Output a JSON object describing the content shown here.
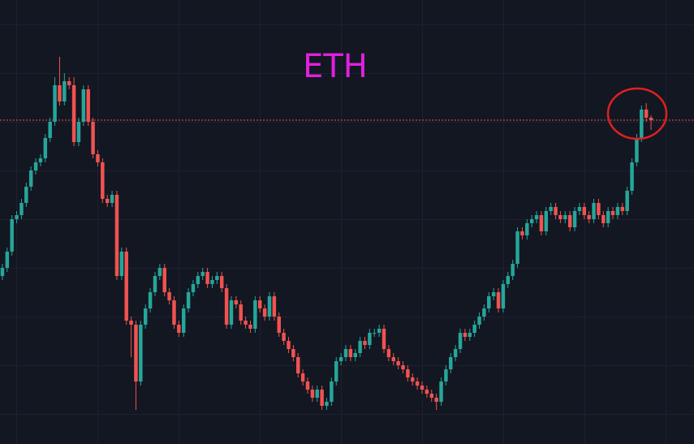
{
  "chart_data": {
    "type": "candlestick",
    "title": "ETH",
    "ylim": [
      0,
      547
    ],
    "up_color": "#26a69a",
    "down_color": "#ef5350",
    "price_line": 399,
    "price_line_color": "#ef5350",
    "open": [
      207,
      217,
      237,
      277,
      282,
      297,
      317,
      337,
      347,
      352,
      377,
      397,
      442,
      422,
      447,
      442,
      372,
      397,
      437,
      397,
      357,
      347,
      302,
      297,
      307,
      207,
      237,
      152,
      147,
      77,
      147,
      167,
      187,
      207,
      217,
      187,
      177,
      147,
      137,
      167,
      187,
      197,
      207,
      212,
      197,
      202,
      207,
      192,
      147,
      177,
      172,
      152,
      147,
      142,
      177,
      167,
      157,
      182,
      157,
      137,
      127,
      117,
      107,
      87,
      77,
      67,
      57,
      67,
      47,
      52,
      77,
      102,
      107,
      117,
      107,
      112,
      127,
      122,
      137,
      137,
      142,
      117,
      107,
      102,
      97,
      92,
      82,
      77,
      72,
      67,
      62,
      57,
      52,
      77,
      92,
      107,
      117,
      137,
      132,
      137,
      147,
      157,
      167,
      182,
      187,
      167,
      197,
      207,
      222,
      262,
      257,
      272,
      277,
      282,
      262,
      287,
      292,
      282,
      277,
      282,
      267,
      287,
      292,
      282,
      277,
      297,
      282,
      272,
      287,
      282,
      292,
      287,
      312,
      347,
      377,
      412,
      402
    ],
    "high": [
      222,
      242,
      282,
      287,
      302,
      322,
      342,
      352,
      357,
      382,
      402,
      452,
      477,
      457,
      452,
      452,
      402,
      442,
      442,
      402,
      362,
      352,
      307,
      312,
      312,
      242,
      242,
      157,
      152,
      152,
      172,
      192,
      212,
      222,
      222,
      192,
      182,
      152,
      172,
      192,
      202,
      212,
      217,
      217,
      207,
      212,
      212,
      197,
      182,
      182,
      177,
      157,
      152,
      182,
      182,
      172,
      187,
      187,
      162,
      142,
      132,
      122,
      112,
      92,
      82,
      72,
      72,
      72,
      57,
      82,
      107,
      112,
      122,
      122,
      117,
      132,
      132,
      142,
      142,
      147,
      147,
      122,
      112,
      107,
      102,
      97,
      87,
      82,
      77,
      72,
      67,
      62,
      82,
      97,
      112,
      122,
      142,
      142,
      142,
      152,
      162,
      172,
      187,
      192,
      192,
      202,
      212,
      227,
      267,
      267,
      277,
      282,
      287,
      287,
      292,
      297,
      297,
      287,
      287,
      287,
      292,
      297,
      297,
      287,
      302,
      302,
      287,
      292,
      292,
      297,
      297,
      317,
      352,
      382,
      417,
      420,
      405
    ],
    "low": [
      202,
      212,
      232,
      272,
      277,
      292,
      312,
      332,
      342,
      347,
      372,
      392,
      417,
      417,
      437,
      367,
      367,
      392,
      392,
      352,
      342,
      297,
      292,
      292,
      202,
      202,
      147,
      107,
      42,
      72,
      142,
      162,
      182,
      202,
      182,
      172,
      142,
      132,
      132,
      162,
      182,
      192,
      202,
      192,
      192,
      197,
      187,
      142,
      142,
      167,
      147,
      142,
      137,
      137,
      162,
      152,
      152,
      152,
      132,
      122,
      112,
      102,
      82,
      72,
      62,
      52,
      52,
      42,
      42,
      47,
      72,
      97,
      102,
      102,
      102,
      107,
      117,
      117,
      132,
      132,
      112,
      102,
      97,
      92,
      87,
      77,
      72,
      67,
      62,
      57,
      52,
      42,
      47,
      72,
      87,
      102,
      112,
      127,
      127,
      132,
      142,
      152,
      162,
      177,
      162,
      162,
      192,
      202,
      217,
      252,
      252,
      267,
      272,
      257,
      257,
      282,
      277,
      272,
      272,
      262,
      262,
      282,
      277,
      272,
      272,
      277,
      267,
      267,
      277,
      277,
      282,
      282,
      307,
      342,
      372,
      397,
      387
    ],
    "close": [
      217,
      237,
      277,
      282,
      297,
      317,
      337,
      347,
      352,
      377,
      397,
      442,
      422,
      447,
      442,
      372,
      397,
      437,
      397,
      357,
      347,
      302,
      297,
      307,
      207,
      237,
      152,
      147,
      77,
      147,
      167,
      187,
      207,
      217,
      187,
      177,
      147,
      137,
      167,
      187,
      197,
      207,
      212,
      197,
      202,
      207,
      192,
      147,
      177,
      172,
      152,
      147,
      142,
      177,
      167,
      157,
      182,
      157,
      137,
      127,
      117,
      107,
      87,
      77,
      67,
      57,
      67,
      47,
      52,
      77,
      102,
      107,
      117,
      107,
      112,
      127,
      122,
      137,
      137,
      142,
      117,
      107,
      102,
      97,
      92,
      82,
      77,
      72,
      67,
      62,
      57,
      52,
      77,
      92,
      107,
      117,
      137,
      132,
      137,
      147,
      157,
      167,
      182,
      187,
      167,
      197,
      207,
      222,
      262,
      257,
      272,
      277,
      282,
      262,
      287,
      292,
      282,
      277,
      282,
      267,
      287,
      292,
      282,
      277,
      297,
      282,
      272,
      287,
      282,
      292,
      287,
      312,
      347,
      377,
      412,
      402,
      399
    ]
  }
}
